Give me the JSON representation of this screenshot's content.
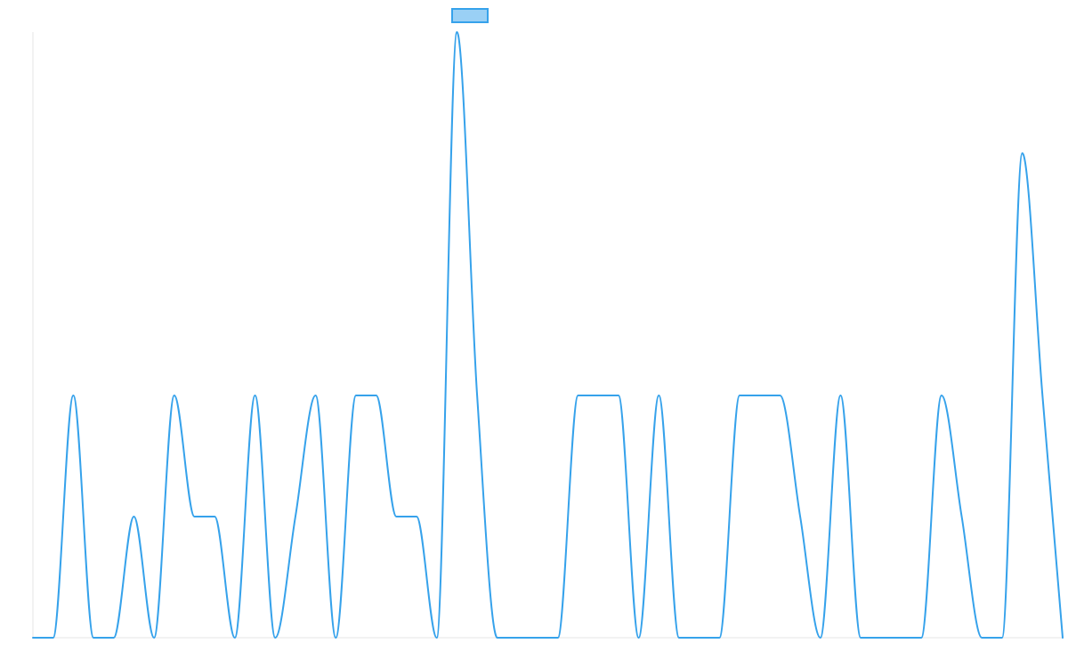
{
  "chart_data": {
    "type": "line",
    "title": "",
    "xlabel": "",
    "ylabel": "",
    "legend": {
      "placement": "top-center",
      "show_label": false
    },
    "grid": false,
    "x": [
      0,
      1,
      2,
      3,
      4,
      5,
      6,
      7,
      8,
      9,
      10,
      11,
      12,
      13,
      14,
      15,
      16,
      17,
      18,
      19,
      20,
      21,
      22,
      23,
      24,
      25,
      26,
      27,
      28,
      29,
      30,
      31,
      32,
      33,
      34,
      35,
      36,
      37,
      38,
      39,
      40,
      41,
      42,
      43,
      44,
      45,
      46,
      47,
      48,
      49,
      50,
      51
    ],
    "ylim": [
      0,
      5
    ],
    "xlim": [
      0,
      51
    ],
    "series": [
      {
        "values": [
          0,
          0,
          2,
          0,
          0,
          1,
          0,
          2,
          1,
          1,
          0,
          2,
          0,
          1,
          2,
          0,
          2,
          2,
          1,
          1,
          0,
          5,
          2,
          0,
          0,
          0,
          0,
          2,
          2,
          2,
          0,
          2,
          0,
          0,
          0,
          2,
          2,
          2,
          1,
          0,
          2,
          0,
          0,
          0,
          0,
          2,
          1,
          0,
          0,
          4,
          2,
          0
        ],
        "stroke": "#36a2eb",
        "fill": "#9ad0f5"
      }
    ]
  }
}
